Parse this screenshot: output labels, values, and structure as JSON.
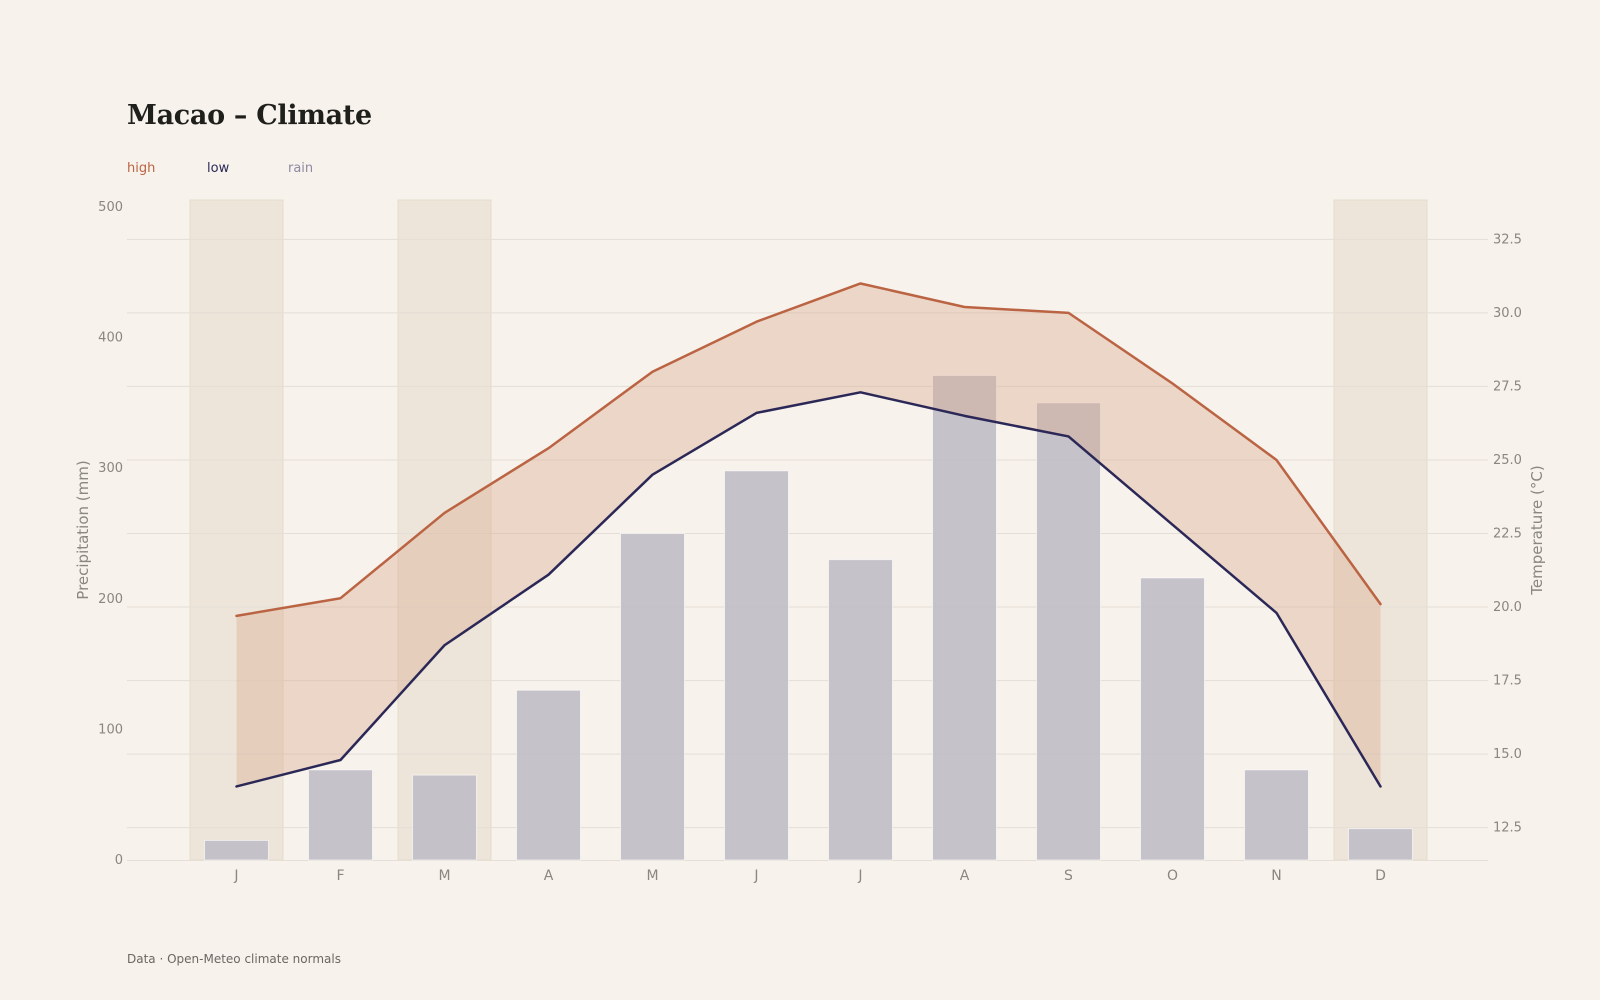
{
  "title": "Macao – Climate",
  "legend": [
    {
      "key": "high",
      "label": "high",
      "color": "#bb6443"
    },
    {
      "key": "low",
      "label": "low",
      "color": "#2b2858"
    },
    {
      "key": "rain",
      "label": "rain",
      "color": "#8e8aa3"
    }
  ],
  "footer": "Data · Open-Meteo climate normals",
  "colors": {
    "high": "#bb6443",
    "low": "#2b2858",
    "rain_bar": "#c2bfc7",
    "band_fill": "#e9d5cb",
    "highlight_col": "#ede5d9",
    "grid": "#e4ded6",
    "background": "#f7f2ec"
  },
  "chart_data": {
    "type": "bar+line",
    "categories": [
      "J",
      "F",
      "M",
      "A",
      "M",
      "J",
      "J",
      "A",
      "S",
      "O",
      "N",
      "D"
    ],
    "highlighted_categories": [
      0,
      2,
      11
    ],
    "series": [
      {
        "name": "high",
        "axis": "right",
        "kind": "line",
        "values": [
          19.7,
          20.3,
          23.2,
          25.4,
          28.0,
          29.7,
          31.0,
          30.2,
          30.0,
          27.6,
          25.0,
          20.1
        ]
      },
      {
        "name": "low",
        "axis": "right",
        "kind": "line",
        "values": [
          13.9,
          14.8,
          18.7,
          21.1,
          24.5,
          26.6,
          27.3,
          26.5,
          25.8,
          22.8,
          19.8,
          13.9
        ]
      },
      {
        "name": "rain",
        "axis": "left",
        "kind": "bar",
        "values": [
          15,
          69,
          65,
          130,
          250,
          298,
          230,
          371,
          350,
          216,
          69,
          24
        ]
      }
    ],
    "ylabel_left": "Precipitation (mm)",
    "ylabel_right": "Temperature (°C)",
    "ylim_left": [
      0,
      500
    ],
    "yticks_left": [
      "0",
      "100",
      "200",
      "300",
      "400",
      "500"
    ],
    "ylim_right": [
      11.4,
      33.6
    ],
    "yticks_right": [
      "12.5",
      "15.0",
      "17.5",
      "20.0",
      "22.5",
      "25.0",
      "27.5",
      "30.0",
      "32.5"
    ],
    "grid": true,
    "legend_position": "top-left"
  }
}
